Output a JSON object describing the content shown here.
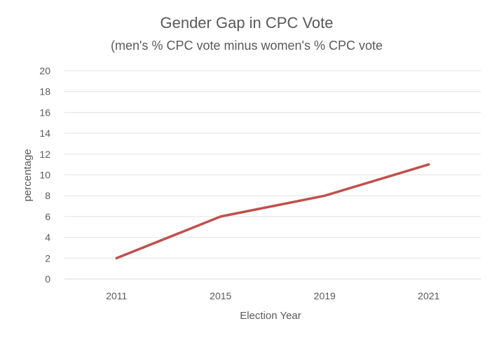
{
  "chart_data": {
    "type": "line",
    "title": "Gender Gap in CPC Vote",
    "subtitle": "(men's % CPC vote minus women's % CPC vote",
    "xlabel": "Election Year",
    "ylabel": "percentage",
    "categories": [
      "2011",
      "2015",
      "2019",
      "2021"
    ],
    "series": [
      {
        "values": [
          2,
          6,
          8,
          11
        ],
        "color": "#C0504D"
      }
    ],
    "ylim": [
      0,
      20
    ],
    "ytick_step": 2,
    "yticks": [
      "0",
      "2",
      "4",
      "6",
      "8",
      "10",
      "12",
      "14",
      "16",
      "18",
      "20"
    ],
    "grid": true,
    "legend": "none"
  }
}
